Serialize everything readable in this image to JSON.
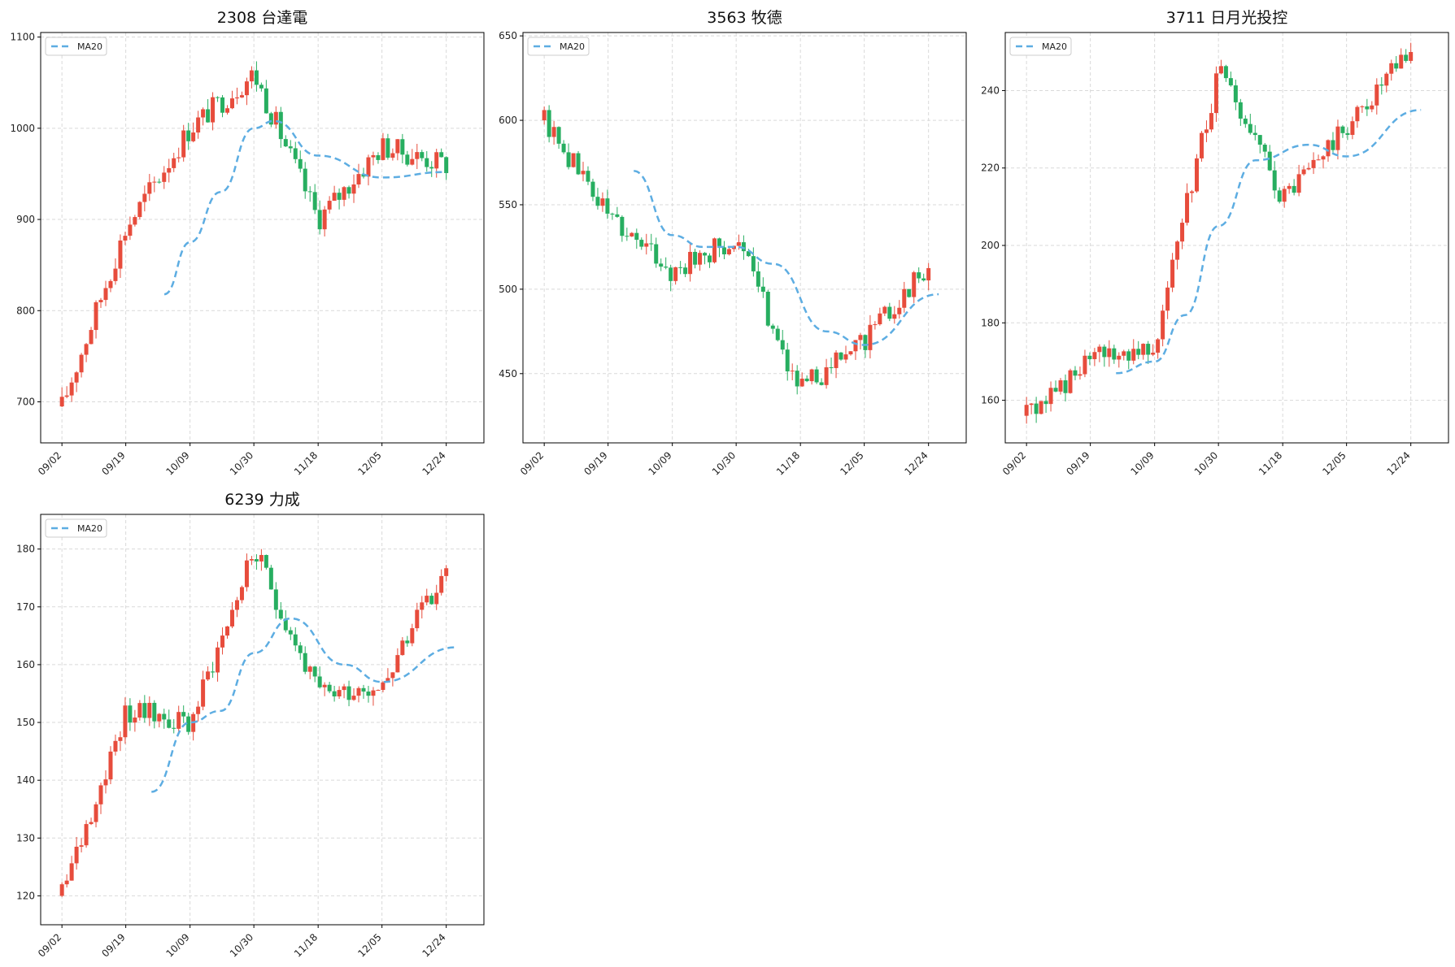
{
  "colors": {
    "up": "#e74c3c",
    "down": "#27ae60",
    "ma": "#5dade2",
    "grid": "#d9d9d9",
    "axis": "#000000"
  },
  "chart_data": [
    {
      "type": "candlestick",
      "title": "2308 台達電",
      "ylim": [
        655,
        1105
      ],
      "yticks": [
        700,
        800,
        900,
        1000,
        1100
      ],
      "xticks": [
        "09/02",
        "09/19",
        "10/09",
        "10/30",
        "11/18",
        "12/05",
        "12/24"
      ],
      "legend": {
        "label": "MA20",
        "placement": "top-left"
      },
      "grid": true,
      "x": [
        "09/02",
        "09/19",
        "10/09",
        "10/30",
        "11/18",
        "12/05",
        "12/24"
      ],
      "close": [
        695,
        890,
        1000,
        1060,
        900,
        980,
        960
      ],
      "ma20": {
        "x": [
          "10/01",
          "10/09",
          "10/19",
          "10/30",
          "11/05",
          "11/18",
          "12/05",
          "12/24"
        ],
        "values": [
          818,
          875,
          930,
          1000,
          1008,
          970,
          946,
          952
        ]
      }
    },
    {
      "type": "candlestick",
      "title": "3563 牧德",
      "ylim": [
        409,
        652
      ],
      "yticks": [
        450,
        500,
        550,
        600,
        650
      ],
      "xticks": [
        "09/02",
        "09/19",
        "10/09",
        "10/30",
        "11/18",
        "12/05",
        "12/24"
      ],
      "legend": {
        "label": "MA20",
        "placement": "top-left"
      },
      "grid": true,
      "x": [
        "09/02",
        "09/19",
        "10/09",
        "10/30",
        "11/18",
        "12/05",
        "12/24"
      ],
      "close": [
        600,
        545,
        510,
        530,
        440,
        470,
        515
      ],
      "ma20": {
        "x": [
          "09/27",
          "10/09",
          "10/19",
          "10/30",
          "11/10",
          "11/25",
          "12/05",
          "12/27"
        ],
        "values": [
          570,
          532,
          525,
          525,
          515,
          475,
          467,
          497
        ]
      }
    },
    {
      "type": "candlestick",
      "title": "3711 日月光投控",
      "ylim": [
        149,
        255
      ],
      "yticks": [
        160,
        180,
        200,
        220,
        240
      ],
      "xticks": [
        "09/02",
        "09/19",
        "10/09",
        "10/30",
        "11/18",
        "12/05",
        "12/24"
      ],
      "legend": {
        "label": "MA20",
        "placement": "top-left"
      },
      "grid": true,
      "x": [
        "09/02",
        "09/19",
        "10/09",
        "10/30",
        "11/18",
        "12/05",
        "12/24"
      ],
      "close": [
        156,
        170,
        175,
        245,
        212,
        230,
        250
      ],
      "ma20": {
        "x": [
          "09/27",
          "10/09",
          "10/19",
          "10/30",
          "11/10",
          "11/25",
          "12/05",
          "12/27"
        ],
        "values": [
          167,
          170,
          182,
          205,
          222,
          226,
          223,
          235
        ]
      }
    },
    {
      "type": "candlestick",
      "title": "6239 力成",
      "ylim": [
        115,
        186
      ],
      "yticks": [
        120,
        130,
        140,
        150,
        160,
        170,
        180
      ],
      "xticks": [
        "09/02",
        "09/19",
        "10/09",
        "10/30",
        "11/18",
        "12/05",
        "12/24"
      ],
      "legend": {
        "label": "MA20",
        "placement": "top-left"
      },
      "grid": true,
      "x": [
        "09/02",
        "09/19",
        "10/09",
        "10/30",
        "11/18",
        "12/05",
        "12/24"
      ],
      "close": [
        120,
        152,
        150,
        180,
        155,
        157,
        176
      ],
      "ma20": {
        "x": [
          "09/27",
          "10/09",
          "10/19",
          "10/30",
          "11/10",
          "11/25",
          "12/05",
          "12/27"
        ],
        "values": [
          138,
          150,
          152,
          162,
          168,
          160,
          157,
          163
        ]
      }
    }
  ]
}
